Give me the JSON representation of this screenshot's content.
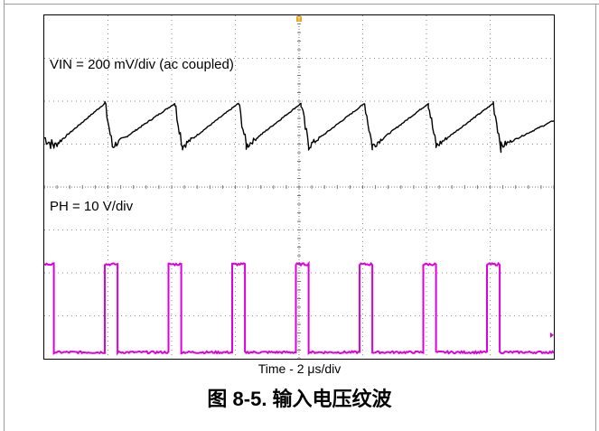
{
  "chart_data": {
    "type": "line",
    "title": "图 8-5. 输入电压纹波",
    "xlabel": "Time - 2 μs/div",
    "x_divisions": 8,
    "y_divisions": 8,
    "grid": true,
    "trigger_marker": "T",
    "series": [
      {
        "name": "VIN = 200 mV/div (ac coupled)",
        "color": "#000000",
        "waveform": "sawtooth",
        "x_div": [
          0.0,
          0.15,
          0.95,
          1.07,
          2.05,
          2.17,
          3.05,
          3.17,
          4.03,
          4.15,
          5.03,
          5.15,
          6.03,
          6.15,
          7.05,
          7.17,
          8.0
        ],
        "y_div": [
          5.15,
          4.95,
          5.95,
          4.95,
          5.95,
          4.95,
          5.95,
          4.95,
          5.95,
          4.95,
          5.95,
          4.95,
          5.95,
          4.95,
          5.95,
          4.95,
          5.55
        ]
      },
      {
        "name": "PH = 10 V/div",
        "color": "#dd00dd",
        "waveform": "pulse",
        "x_div": [
          0.0,
          0.15,
          0.15,
          0.95,
          0.95,
          1.15,
          1.15,
          1.95,
          1.95,
          2.15,
          2.15,
          2.95,
          2.95,
          3.15,
          3.15,
          3.95,
          3.95,
          4.15,
          4.15,
          4.95,
          4.95,
          5.15,
          5.15,
          5.95,
          5.95,
          6.15,
          6.15,
          6.95,
          6.95,
          7.15,
          7.15,
          8.0
        ],
        "y_div": [
          2.2,
          2.2,
          0.15,
          0.15,
          2.2,
          2.2,
          0.15,
          0.15,
          2.2,
          2.2,
          0.15,
          0.15,
          2.2,
          2.2,
          0.15,
          0.15,
          2.2,
          2.2,
          0.15,
          0.15,
          2.2,
          2.2,
          0.15,
          0.15,
          2.2,
          2.2,
          0.15,
          0.15,
          2.2,
          2.2,
          0.15,
          0.15
        ]
      }
    ]
  }
}
